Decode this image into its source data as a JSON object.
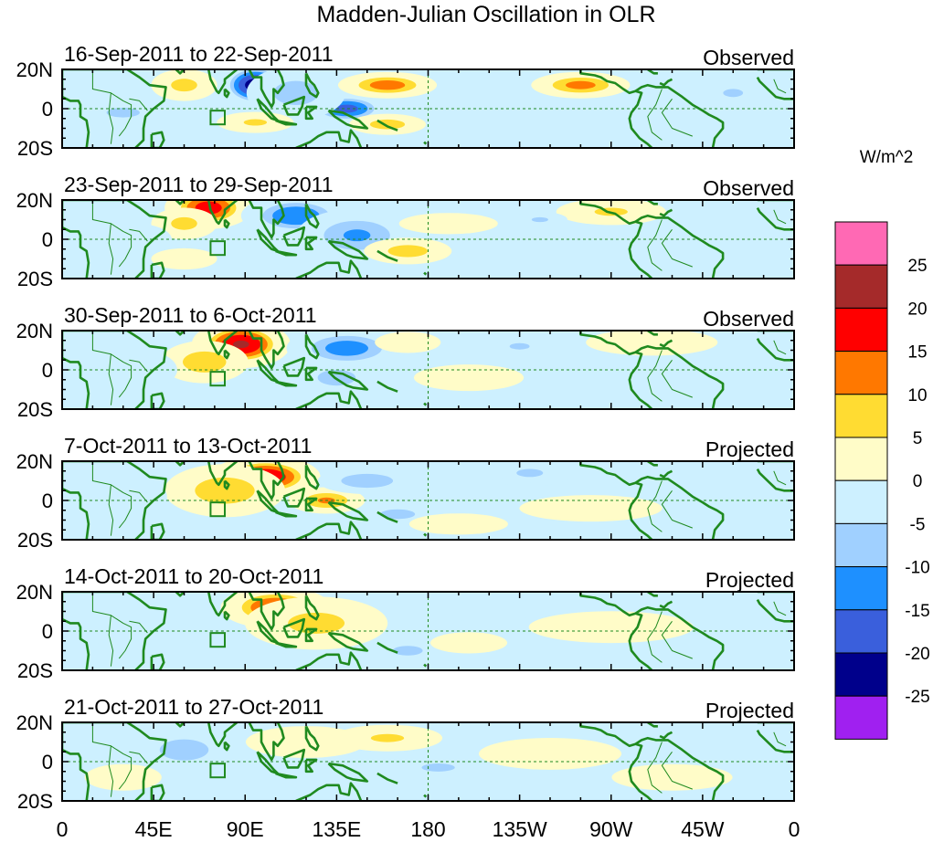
{
  "chart_data": {
    "type": "heatmap",
    "title": "Madden-Julian Oscillation in OLR",
    "units_label": "W/m^2",
    "x_tick_labels": [
      "0",
      "45E",
      "90E",
      "135E",
      "180",
      "135W",
      "90W",
      "45W",
      "0"
    ],
    "x_tick_lons": [
      0,
      45,
      90,
      135,
      180,
      225,
      270,
      315,
      360
    ],
    "xlim": [
      0,
      360
    ],
    "y_tick_labels": [
      "20N",
      "0",
      "20S"
    ],
    "y_tick_lats": [
      20,
      0,
      -20
    ],
    "ylim": [
      -20,
      20
    ],
    "colorbar": {
      "levels": [
        -25,
        -20,
        -15,
        -10,
        -5,
        0,
        5,
        10,
        15,
        20,
        25
      ],
      "level_labels": [
        "-25",
        "-20",
        "-15",
        "-10",
        "-5",
        "0",
        "5",
        "10",
        "15",
        "20",
        "25"
      ],
      "colors": [
        "#a020f0",
        "#00008b",
        "#3a5fdc",
        "#1e90ff",
        "#a0d0ff",
        "#cdf0ff",
        "#fffcc8",
        "#ffdc32",
        "#ff7800",
        "#ff0000",
        "#a52a2a",
        "#ff69b4"
      ]
    },
    "panels": [
      {
        "period": "16-Sep-2011 to 22-Sep-2011",
        "status": "Observed",
        "anomalies": [
          {
            "lon": 95,
            "lat": 12,
            "rlon": 14,
            "rlat": 9,
            "value": -23
          },
          {
            "lon": 140,
            "lat": 0,
            "rlon": 16,
            "rlat": 6,
            "value": -17
          },
          {
            "lon": 115,
            "lat": 8,
            "rlon": 18,
            "rlat": 10,
            "value": -8
          },
          {
            "lon": 30,
            "lat": -2,
            "rlon": 20,
            "rlat": 6,
            "value": -6
          },
          {
            "lon": 60,
            "lat": 12,
            "rlon": 12,
            "rlat": 6,
            "value": 7
          },
          {
            "lon": 160,
            "lat": 12,
            "rlon": 18,
            "rlat": 5,
            "value": 13
          },
          {
            "lon": 255,
            "lat": 12,
            "rlon": 18,
            "rlat": 5,
            "value": 12
          },
          {
            "lon": 160,
            "lat": -8,
            "rlon": 14,
            "rlat": 4,
            "value": 8
          },
          {
            "lon": 95,
            "lat": -7,
            "rlon": 14,
            "rlat": 4,
            "value": 6
          },
          {
            "lon": 330,
            "lat": 8,
            "rlon": 12,
            "rlat": 5,
            "value": -6
          }
        ]
      },
      {
        "period": "23-Sep-2011 to 29-Sep-2011",
        "status": "Observed",
        "anomalies": [
          {
            "lon": 72,
            "lat": 16,
            "rlon": 16,
            "rlat": 8,
            "value": 18
          },
          {
            "lon": 60,
            "lat": 8,
            "rlon": 12,
            "rlat": 6,
            "value": 7
          },
          {
            "lon": 115,
            "lat": 12,
            "rlon": 20,
            "rlat": 8,
            "value": -15
          },
          {
            "lon": 145,
            "lat": 2,
            "rlon": 22,
            "rlat": 10,
            "value": -11
          },
          {
            "lon": 35,
            "lat": 0,
            "rlon": 14,
            "rlat": 6,
            "value": -5
          },
          {
            "lon": 170,
            "lat": -6,
            "rlon": 16,
            "rlat": 5,
            "value": 8
          },
          {
            "lon": 190,
            "lat": 8,
            "rlon": 18,
            "rlat": 4,
            "value": 5
          },
          {
            "lon": 270,
            "lat": 14,
            "rlon": 20,
            "rlat": 5,
            "value": 6
          },
          {
            "lon": 60,
            "lat": -10,
            "rlon": 12,
            "rlat": 4,
            "value": 5
          },
          {
            "lon": 235,
            "lat": 10,
            "rlon": 10,
            "rlat": 3,
            "value": -6
          }
        ]
      },
      {
        "period": "30-Sep-2011 to 6-Oct-2011",
        "status": "Observed",
        "anomalies": [
          {
            "lon": 88,
            "lat": 13,
            "rlon": 18,
            "rlat": 9,
            "value": 21
          },
          {
            "lon": 70,
            "lat": 4,
            "rlon": 16,
            "rlat": 8,
            "value": 9
          },
          {
            "lon": 140,
            "lat": 11,
            "rlon": 22,
            "rlat": 8,
            "value": -13
          },
          {
            "lon": 135,
            "lat": -4,
            "rlon": 14,
            "rlat": 6,
            "value": -9
          },
          {
            "lon": 35,
            "lat": 0,
            "rlon": 16,
            "rlat": 8,
            "value": -5
          },
          {
            "lon": 225,
            "lat": 12,
            "rlon": 12,
            "rlat": 4,
            "value": -6
          },
          {
            "lon": 200,
            "lat": -4,
            "rlon": 20,
            "rlat": 5,
            "value": 5
          },
          {
            "lon": 290,
            "lat": 14,
            "rlon": 24,
            "rlat": 5,
            "value": 4
          },
          {
            "lon": 170,
            "lat": 14,
            "rlon": 12,
            "rlat": 4,
            "value": 5
          }
        ]
      },
      {
        "period": "7-Oct-2011 to 13-Oct-2011",
        "status": "Projected",
        "anomalies": [
          {
            "lon": 100,
            "lat": 12,
            "rlon": 20,
            "rlat": 8,
            "value": 20
          },
          {
            "lon": 80,
            "lat": 5,
            "rlon": 22,
            "rlat": 10,
            "value": 9
          },
          {
            "lon": 130,
            "lat": 0,
            "rlon": 14,
            "rlat": 5,
            "value": 11
          },
          {
            "lon": 150,
            "lat": 10,
            "rlon": 18,
            "rlat": 5,
            "value": -10
          },
          {
            "lon": 165,
            "lat": -7,
            "rlon": 14,
            "rlat": 4,
            "value": -8
          },
          {
            "lon": 230,
            "lat": 14,
            "rlon": 16,
            "rlat": 5,
            "value": -6
          },
          {
            "lon": 30,
            "lat": 2,
            "rlon": 16,
            "rlat": 8,
            "value": -4
          },
          {
            "lon": 260,
            "lat": -4,
            "rlon": 26,
            "rlat": 5,
            "value": 3
          },
          {
            "lon": 195,
            "lat": -12,
            "rlon": 18,
            "rlat": 4,
            "value": 4
          }
        ]
      },
      {
        "period": "14-Oct-2011 to 20-Oct-2011",
        "status": "Projected",
        "anomalies": [
          {
            "lon": 105,
            "lat": 12,
            "rlon": 20,
            "rlat": 8,
            "value": 16
          },
          {
            "lon": 125,
            "lat": 4,
            "rlon": 26,
            "rlat": 10,
            "value": 7
          },
          {
            "lon": 170,
            "lat": -10,
            "rlon": 12,
            "rlat": 4,
            "value": -8
          },
          {
            "lon": 45,
            "lat": -2,
            "rlon": 22,
            "rlat": 8,
            "value": -4
          },
          {
            "lon": 215,
            "lat": 10,
            "rlon": 18,
            "rlat": 5,
            "value": -5
          },
          {
            "lon": 270,
            "lat": 2,
            "rlon": 30,
            "rlat": 6,
            "value": 3
          },
          {
            "lon": 200,
            "lat": -6,
            "rlon": 14,
            "rlat": 4,
            "value": 4
          }
        ]
      },
      {
        "period": "21-Oct-2011 to 27-Oct-2011",
        "status": "Projected",
        "anomalies": [
          {
            "lon": 60,
            "lat": 6,
            "rlon": 18,
            "rlat": 8,
            "value": -9
          },
          {
            "lon": 120,
            "lat": 10,
            "rlon": 22,
            "rlat": 6,
            "value": 5
          },
          {
            "lon": 185,
            "lat": -3,
            "rlon": 20,
            "rlat": 5,
            "value": -6
          },
          {
            "lon": 160,
            "lat": 12,
            "rlon": 20,
            "rlat": 5,
            "value": 6
          },
          {
            "lon": 240,
            "lat": 4,
            "rlon": 26,
            "rlat": 6,
            "value": 3
          },
          {
            "lon": 300,
            "lat": -8,
            "rlon": 22,
            "rlat": 5,
            "value": 3
          },
          {
            "lon": 30,
            "lat": -8,
            "rlon": 14,
            "rlat": 5,
            "value": 4
          }
        ]
      }
    ]
  }
}
